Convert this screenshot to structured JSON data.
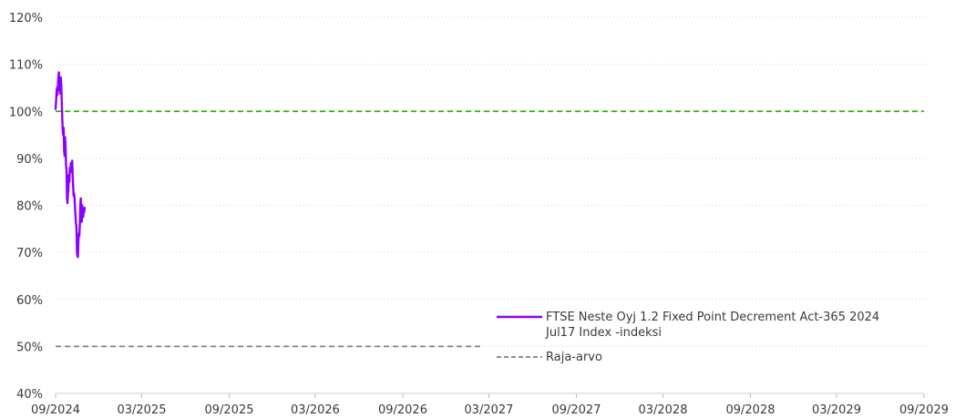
{
  "chart_data": {
    "type": "line",
    "title": "",
    "xlabel": "",
    "ylabel": "",
    "ylim": [
      40,
      120
    ],
    "xlim": [
      "2024-09-01",
      "2029-09-01"
    ],
    "y_ticks": [
      40,
      50,
      60,
      70,
      80,
      90,
      100,
      110,
      120
    ],
    "y_tick_labels": [
      "40%",
      "50%",
      "60%",
      "70%",
      "80%",
      "90%",
      "100%",
      "110%",
      "120%"
    ],
    "x_ticks": [
      "2024-09-01",
      "2025-03-01",
      "2025-09-01",
      "2026-03-01",
      "2026-09-01",
      "2027-03-01",
      "2027-09-01",
      "2028-03-01",
      "2028-09-01",
      "2029-03-01",
      "2029-09-01"
    ],
    "x_tick_labels": [
      "09/2024",
      "03/2025",
      "09/2025",
      "03/2026",
      "09/2026",
      "03/2027",
      "09/2027",
      "03/2028",
      "09/2028",
      "03/2029",
      "09/2029"
    ],
    "grid": "horizontal dotted",
    "legend_position": "lower-right",
    "series": [
      {
        "name": "FTSE Neste Oyj 1.2 Fixed Point Decrement Act-365 2024 Jul17 Index -indeksi",
        "color": "#8b00ff",
        "style": "solid",
        "points": [
          [
            "2024-09-01",
            100.5
          ],
          [
            "2024-09-02",
            102.0
          ],
          [
            "2024-09-03",
            104.0
          ],
          [
            "2024-09-04",
            105.0
          ],
          [
            "2024-09-05",
            103.5
          ],
          [
            "2024-09-06",
            105.8
          ],
          [
            "2024-09-07",
            107.5
          ],
          [
            "2024-09-08",
            108.3
          ],
          [
            "2024-09-09",
            104.5
          ],
          [
            "2024-09-10",
            106.0
          ],
          [
            "2024-09-11",
            103.8
          ],
          [
            "2024-09-12",
            107.2
          ],
          [
            "2024-09-13",
            105.5
          ],
          [
            "2024-09-14",
            102.0
          ],
          [
            "2024-09-15",
            98.5
          ],
          [
            "2024-09-16",
            96.0
          ],
          [
            "2024-09-17",
            95.0
          ],
          [
            "2024-09-18",
            96.5
          ],
          [
            "2024-09-19",
            91.5
          ],
          [
            "2024-09-20",
            90.5
          ],
          [
            "2024-09-21",
            94.5
          ],
          [
            "2024-09-22",
            92.5
          ],
          [
            "2024-09-23",
            88.5
          ],
          [
            "2024-09-24",
            87.5
          ],
          [
            "2024-09-25",
            81.5
          ],
          [
            "2024-09-26",
            80.5
          ],
          [
            "2024-09-27",
            82.5
          ],
          [
            "2024-09-28",
            83.5
          ],
          [
            "2024-09-29",
            86.5
          ],
          [
            "2024-09-30",
            85.0
          ],
          [
            "2024-10-01",
            88.0
          ],
          [
            "2024-10-02",
            87.0
          ],
          [
            "2024-10-03",
            89.0
          ],
          [
            "2024-10-04",
            88.5
          ],
          [
            "2024-10-05",
            87.5
          ],
          [
            "2024-10-06",
            89.5
          ],
          [
            "2024-10-07",
            86.0
          ],
          [
            "2024-10-08",
            84.0
          ],
          [
            "2024-10-09",
            82.0
          ],
          [
            "2024-10-10",
            82.5
          ],
          [
            "2024-10-11",
            81.5
          ],
          [
            "2024-10-12",
            79.0
          ],
          [
            "2024-10-13",
            77.5
          ],
          [
            "2024-10-14",
            76.0
          ],
          [
            "2024-10-15",
            75.0
          ],
          [
            "2024-10-16",
            70.0
          ],
          [
            "2024-10-17",
            69.2
          ],
          [
            "2024-10-18",
            69.0
          ],
          [
            "2024-10-19",
            72.5
          ],
          [
            "2024-10-20",
            74.0
          ],
          [
            "2024-10-21",
            73.5
          ],
          [
            "2024-10-22",
            76.0
          ],
          [
            "2024-10-23",
            80.0
          ],
          [
            "2024-10-24",
            81.5
          ],
          [
            "2024-10-25",
            78.0
          ],
          [
            "2024-10-26",
            76.5
          ],
          [
            "2024-10-27",
            80.0
          ],
          [
            "2024-10-28",
            78.5
          ],
          [
            "2024-10-29",
            77.5
          ],
          [
            "2024-10-30",
            79.0
          ],
          [
            "2024-10-31",
            78.5
          ],
          [
            "2024-11-01",
            79.5
          ]
        ]
      },
      {
        "name": "",
        "color": "#2db300",
        "style": "dashed",
        "points": [
          [
            "2024-09-01",
            100
          ],
          [
            "2029-09-01",
            100
          ]
        ]
      },
      {
        "name": "Raja-arvo",
        "color": "#808080",
        "style": "dashed",
        "points": [
          [
            "2024-09-01",
            50
          ],
          [
            "2027-02-14",
            50
          ]
        ]
      }
    ],
    "legend": [
      {
        "lines": [
          "FTSE Neste Oyj 1.2 Fixed Point Decrement Act-365 2024",
          "Jul17 Index -indeksi"
        ],
        "color": "#8b00ff",
        "style": "solid"
      },
      {
        "lines": [
          "Raja-arvo"
        ],
        "color": "#808080",
        "style": "dashed"
      }
    ]
  }
}
